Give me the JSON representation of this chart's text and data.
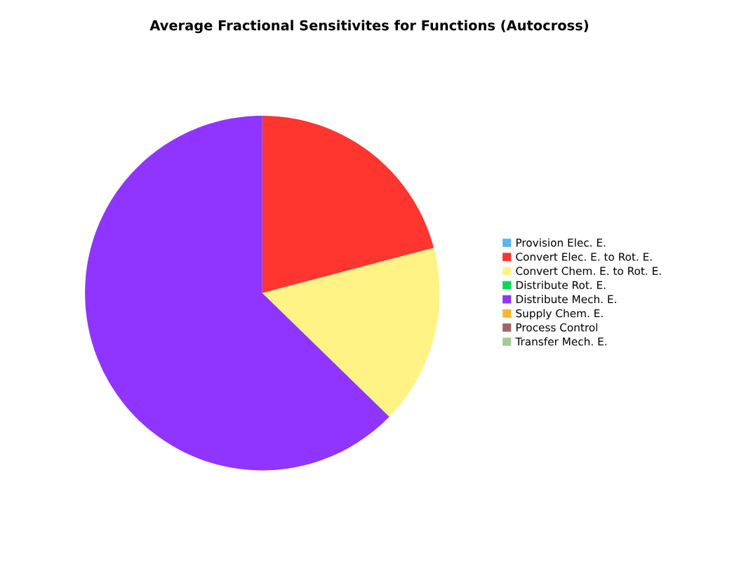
{
  "chart_data": {
    "type": "pie",
    "title": "Average Fractional Sensitivites for Functions (Autocross)",
    "categories": [
      "Provision Elec. E.",
      "Convert Elec. E. to Rot. E.",
      "Convert Chem. E. to Rot. E.",
      "Distribute Rot. E.",
      "Distribute Mech. E.",
      "Supply Chem. E.",
      "Process Control",
      "Transfer Mech. E."
    ],
    "values": [
      0,
      20.9,
      16.4,
      0,
      62.7,
      0,
      0,
      0
    ],
    "colors": [
      "#5ab4f5",
      "#ff3530",
      "#fff385",
      "#00dd55",
      "#9035ff",
      "#ffb52e",
      "#a06565",
      "#a3cc95"
    ],
    "legend": "right"
  }
}
